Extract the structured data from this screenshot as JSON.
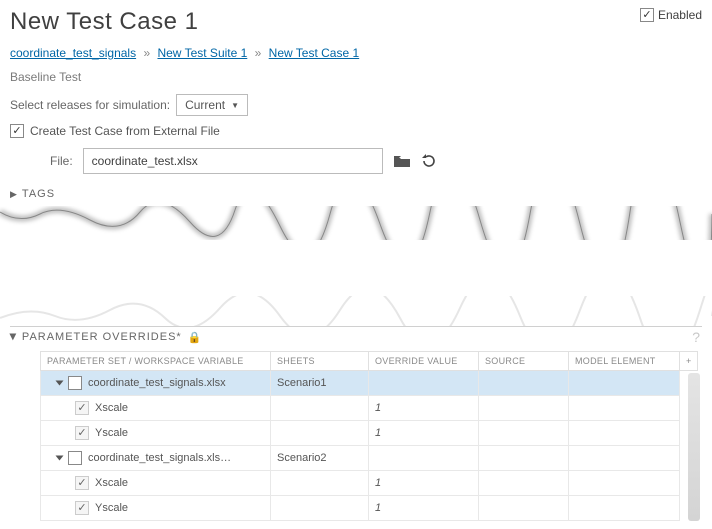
{
  "header": {
    "title": "New Test Case 1",
    "enabled_label": "Enabled",
    "enabled_checked": true
  },
  "breadcrumbs": {
    "items": [
      {
        "label": "coordinate_test_signals"
      },
      {
        "label": "New Test Suite 1"
      },
      {
        "label": "New Test Case 1"
      }
    ],
    "sep": "»"
  },
  "baseline_label": "Baseline Test",
  "release_row": {
    "label": "Select releases for simulation:",
    "selected": "Current"
  },
  "external_file": {
    "label": "Create Test Case from External File",
    "checked": true,
    "file_label": "File:",
    "file_value": "coordinate_test.xlsx"
  },
  "tags_section": {
    "title": "TAGS"
  },
  "overrides_section": {
    "title": "PARAMETER OVERRIDES*",
    "help": "?",
    "columns": {
      "param": "PARAMETER SET / WORKSPACE VARIABLE",
      "sheets": "SHEETS",
      "ov": "OVERRIDE VALUE",
      "src": "SOURCE",
      "model": "MODEL ELEMENT",
      "plus": "+"
    },
    "rows": [
      {
        "type": "group",
        "selected": true,
        "expanded": true,
        "param": "coordinate_test_signals.xlsx",
        "sheets": "Scenario1",
        "ov": "",
        "src": "",
        "model": ""
      },
      {
        "type": "leaf",
        "param": "Xscale",
        "sheets": "",
        "ov": "1",
        "src": "",
        "model": ""
      },
      {
        "type": "leaf",
        "param": "Yscale",
        "sheets": "",
        "ov": "1",
        "src": "",
        "model": ""
      },
      {
        "type": "group",
        "selected": false,
        "expanded": true,
        "param": "coordinate_test_signals.xls…",
        "sheets": "Scenario2",
        "ov": "",
        "src": "",
        "model": ""
      },
      {
        "type": "leaf",
        "param": "Xscale",
        "sheets": "",
        "ov": "1",
        "src": "",
        "model": ""
      },
      {
        "type": "leaf",
        "param": "Yscale",
        "sheets": "",
        "ov": "1",
        "src": "",
        "model": ""
      }
    ]
  },
  "colors": {
    "link": "#0066a6",
    "sel_row": "#d3e6f5"
  }
}
